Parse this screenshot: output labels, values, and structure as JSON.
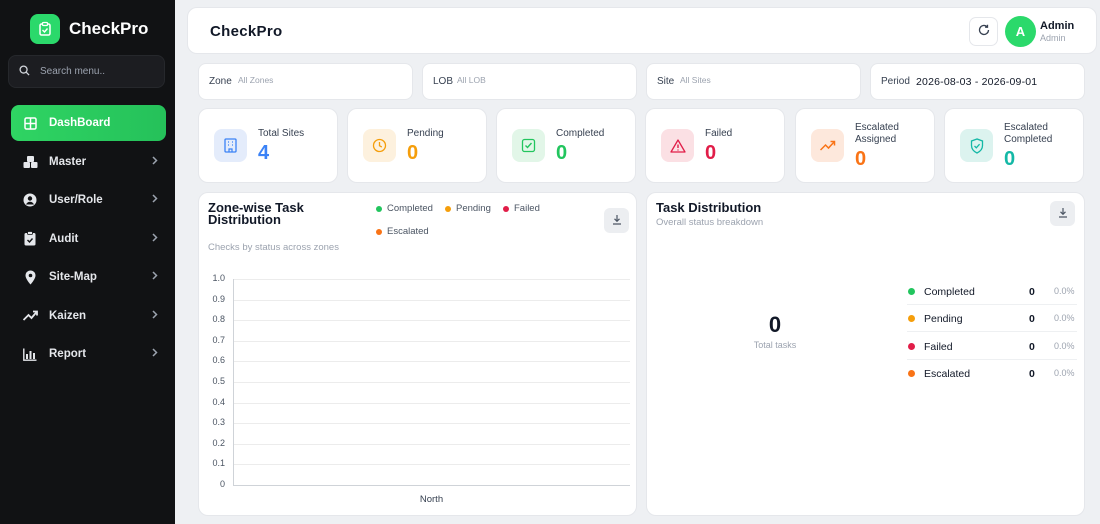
{
  "app": {
    "name": "CheckPro"
  },
  "search": {
    "placeholder": "Search menu.."
  },
  "sidebar": {
    "items": [
      {
        "label": "DashBoard",
        "icon": "grid-icon",
        "active": true
      },
      {
        "label": "Master",
        "icon": "cubes-icon"
      },
      {
        "label": "User/Role",
        "icon": "user-circle-icon"
      },
      {
        "label": "Audit",
        "icon": "clipboard-check-icon"
      },
      {
        "label": "Site-Map",
        "icon": "map-pin-icon"
      },
      {
        "label": "Kaizen",
        "icon": "trending-up-icon"
      },
      {
        "label": "Report",
        "icon": "bar-chart-icon"
      }
    ]
  },
  "header": {
    "title": "CheckPro",
    "avatar_initial": "A",
    "user_name": "Admin",
    "user_role": "Admin"
  },
  "filters": {
    "zone": {
      "label": "Zone",
      "value": "All Zones"
    },
    "lob": {
      "label": "LOB",
      "value": "All LOB"
    },
    "site": {
      "label": "Site",
      "value": "All Sites"
    },
    "period": {
      "label": "Period",
      "value": "2026-08-03 - 2026-09-01"
    }
  },
  "stats": [
    {
      "label": "Total Sites",
      "value": "4",
      "color": "#3b82f6",
      "bg": "#e4ecfb",
      "icon": "building-icon"
    },
    {
      "label": "Pending",
      "value": "0",
      "color": "#f59e0b",
      "bg": "#fdf1de",
      "icon": "clock-icon"
    },
    {
      "label": "Completed",
      "value": "0",
      "color": "#22c55e",
      "bg": "#e2f6e8",
      "icon": "check-square-icon"
    },
    {
      "label": "Failed",
      "value": "0",
      "color": "#e11d48",
      "bg": "#fbe0e4",
      "icon": "alert-triangle-icon"
    },
    {
      "label": "Escalated Assigned",
      "value": "0",
      "color": "#f97316",
      "bg": "#fde8dc",
      "icon": "trending-up-icon"
    },
    {
      "label": "Escalated Completed",
      "value": "0",
      "color": "#14b8a6",
      "bg": "#dcf3ef",
      "icon": "shield-check-icon"
    }
  ],
  "zone_chart": {
    "title": "Zone-wise Task Distribution",
    "subtitle": "Checks by status across zones",
    "legend": [
      {
        "name": "Completed",
        "color": "#22c55e"
      },
      {
        "name": "Pending",
        "color": "#f59e0b"
      },
      {
        "name": "Failed",
        "color": "#e11d48"
      },
      {
        "name": "Escalated",
        "color": "#f97316"
      }
    ]
  },
  "chart_data": {
    "type": "bar",
    "categories": [
      "North"
    ],
    "series": [
      {
        "name": "Completed",
        "values": [
          0
        ]
      },
      {
        "name": "Pending",
        "values": [
          0
        ]
      },
      {
        "name": "Failed",
        "values": [
          0
        ]
      },
      {
        "name": "Escalated",
        "values": [
          0
        ]
      }
    ],
    "yticks": [
      "1.0",
      "0.9",
      "0.8",
      "0.7",
      "0.6",
      "0.5",
      "0.4",
      "0.3",
      "0.2",
      "0.1",
      "0"
    ],
    "ylim": [
      0,
      1
    ],
    "grid": true,
    "legend_position": "top"
  },
  "distribution": {
    "title": "Task Distribution",
    "subtitle": "Overall status breakdown",
    "total": "0",
    "total_label": "Total tasks",
    "items": [
      {
        "label": "Completed",
        "count": "0",
        "percent": "0.0%",
        "color": "#22c55e"
      },
      {
        "label": "Pending",
        "count": "0",
        "percent": "0.0%",
        "color": "#f59e0b"
      },
      {
        "label": "Failed",
        "count": "0",
        "percent": "0.0%",
        "color": "#e11d48"
      },
      {
        "label": "Escalated",
        "count": "0",
        "percent": "0.0%",
        "color": "#f97316"
      }
    ]
  }
}
